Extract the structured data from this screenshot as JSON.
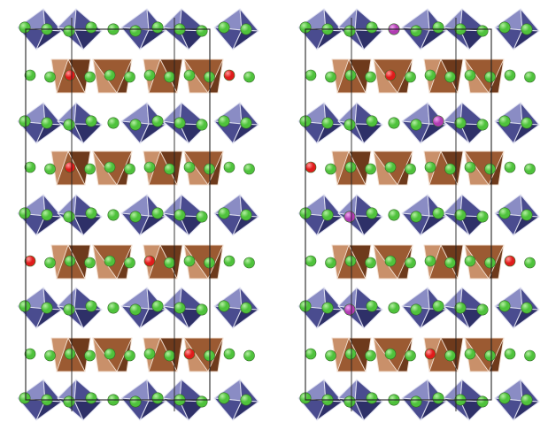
{
  "figure": {
    "panels": [
      {
        "name": "left-structure",
        "rows": [
          {
            "kind": "blue"
          },
          {
            "kind": "brown",
            "red": [
              1,
              5
            ]
          },
          {
            "kind": "blue"
          },
          {
            "kind": "brown",
            "red": [
              1,
              6
            ]
          },
          {
            "kind": "blue"
          },
          {
            "kind": "brown",
            "red": [
              0,
              3
            ]
          },
          {
            "kind": "blue"
          },
          {
            "kind": "brown",
            "red": [
              4
            ]
          },
          {
            "kind": "blue"
          }
        ]
      },
      {
        "name": "right-structure",
        "rows": [
          {
            "kind": "blue",
            "magenta": [
              2
            ]
          },
          {
            "kind": "brown",
            "red": [
              2
            ]
          },
          {
            "kind": "blue",
            "magenta": [
              3
            ]
          },
          {
            "kind": "brown",
            "red": [
              0
            ]
          },
          {
            "kind": "blue",
            "magenta": [
              1
            ]
          },
          {
            "kind": "brown",
            "red": [
              5
            ]
          },
          {
            "kind": "blue",
            "magenta": [
              1
            ]
          },
          {
            "kind": "brown",
            "red": [
              3
            ]
          },
          {
            "kind": "blue"
          }
        ]
      }
    ]
  },
  "colors": {
    "octahedron_face": "#4a4c8f",
    "octahedron_light": "#8a8cc4",
    "octahedron_dark": "#2e3068",
    "tetrahedron_face": "#9b5a32",
    "tetrahedron_light": "#c9906a",
    "tetrahedron_dark": "#6e3a1c",
    "green_atom": "#4fc23c",
    "green_atom_hi": "#b6f0a4",
    "red_atom": "#e01c1c",
    "red_atom_hi": "#ff9a9a",
    "magenta_atom": "#b13cb3",
    "magenta_atom_hi": "#f0a8f0",
    "cell_outline": "#222222",
    "polyhedron_edge": "#dfe0f0"
  }
}
